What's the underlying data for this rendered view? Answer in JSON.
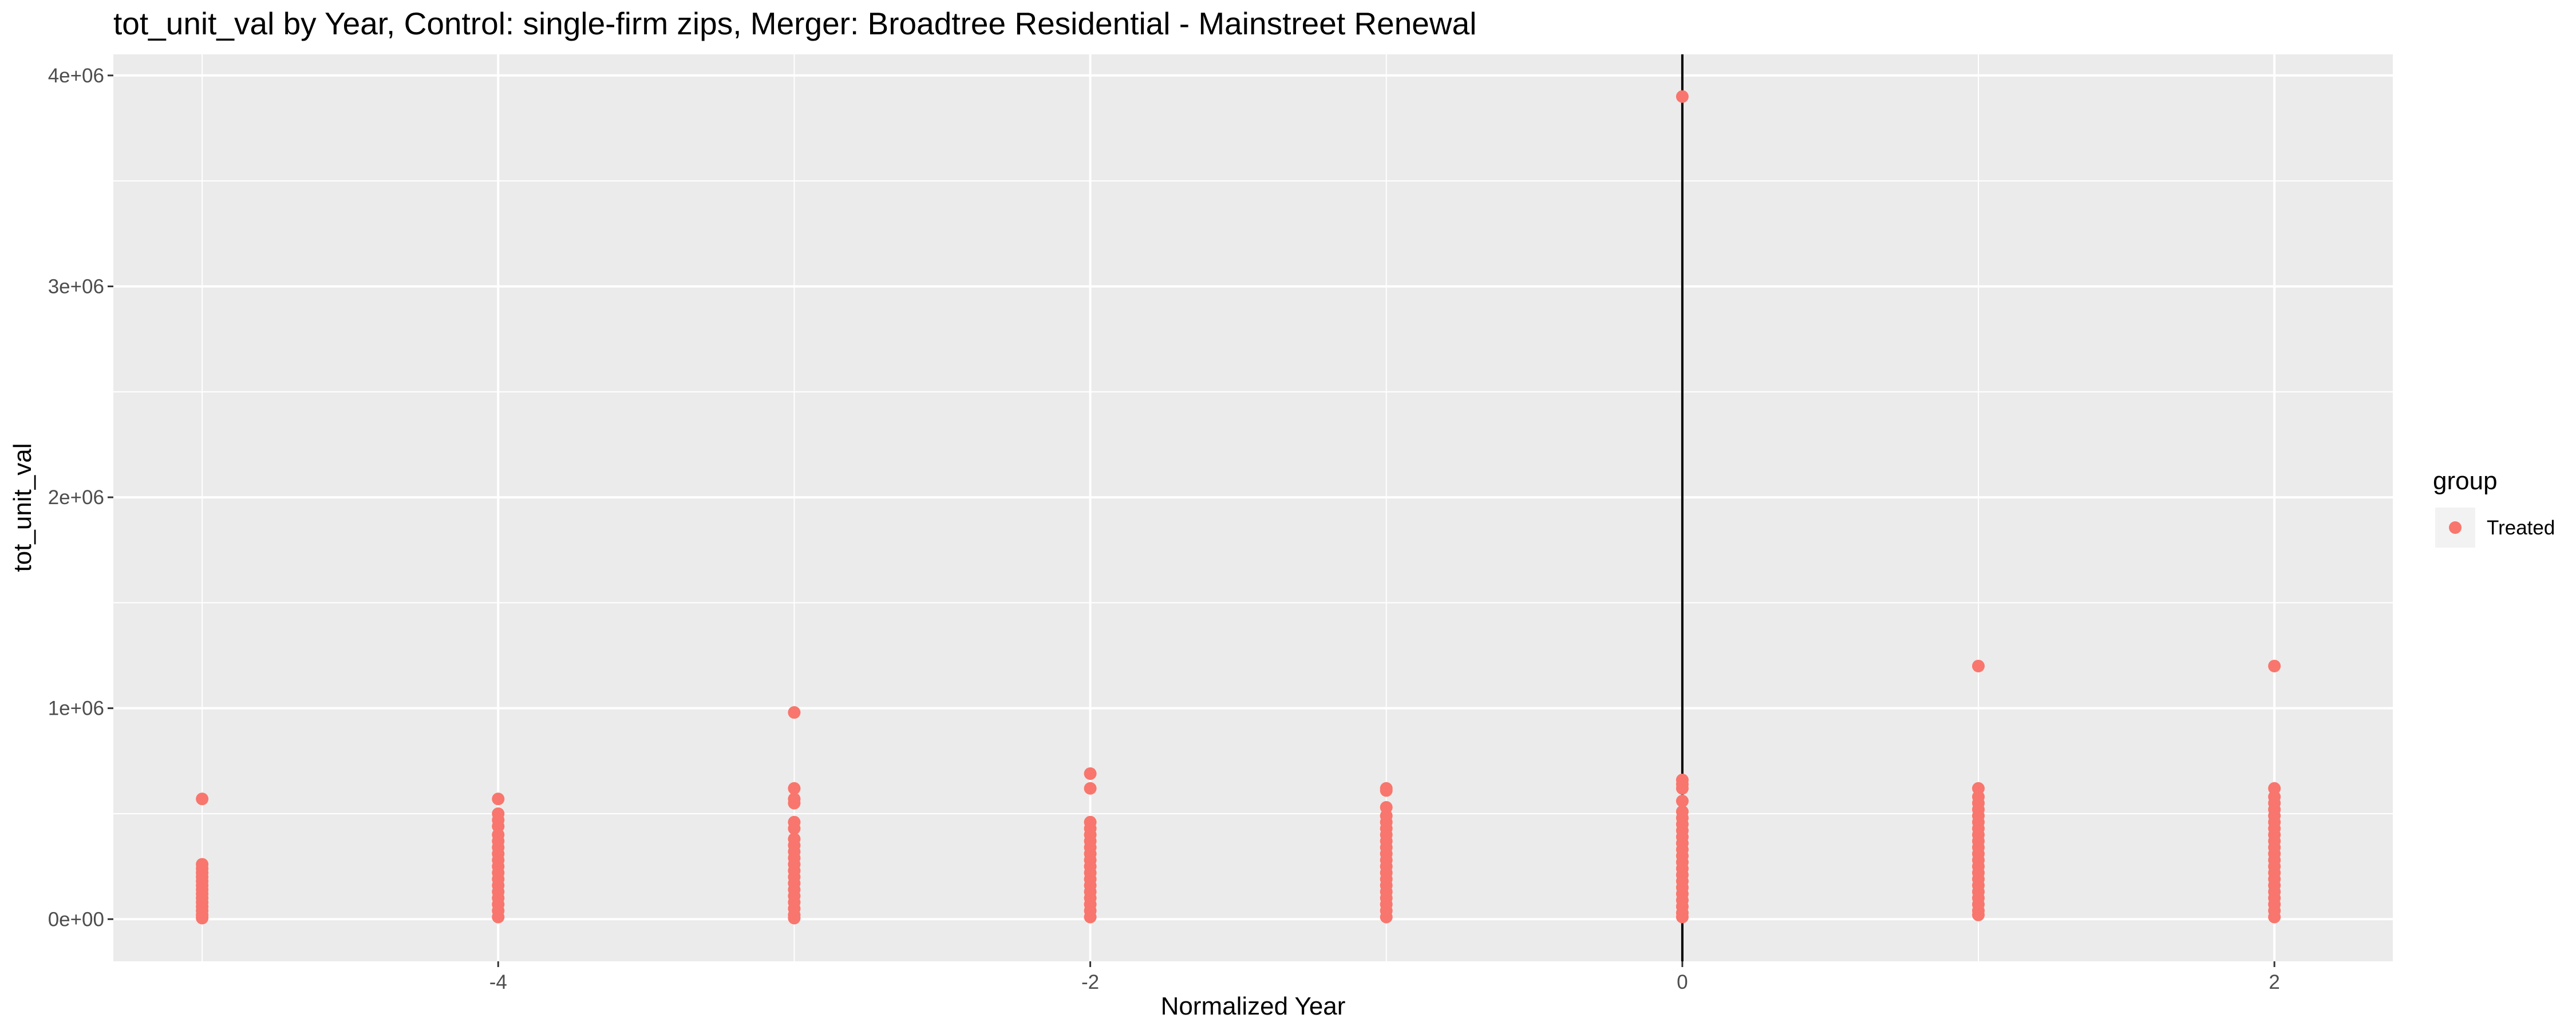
{
  "chart_data": {
    "type": "scatter",
    "title": "tot_unit_val by Year, Control: single-firm zips, Merger: Broadtree Residential - Mainstreet Renewal",
    "xlabel": "Normalized Year",
    "ylabel": "tot_unit_val",
    "xlim": [
      -5.3,
      2.4
    ],
    "ylim": [
      -200000,
      4100000
    ],
    "x_ticks": [
      -4,
      -2,
      0,
      2
    ],
    "x_tick_labels": [
      "-4",
      "-2",
      "0",
      "2"
    ],
    "y_ticks": [
      0,
      1000000,
      2000000,
      3000000,
      4000000
    ],
    "y_tick_labels": [
      "0e+00",
      "1e+06",
      "2e+06",
      "3e+06",
      "4e+06"
    ],
    "vline_x": 0,
    "grid": true,
    "legend": {
      "title": "group",
      "position": "right",
      "entries": [
        "Treated"
      ]
    },
    "colors": {
      "Treated": "#F8766D",
      "panel": "#EBEBEB",
      "grid": "#FFFFFF",
      "vline": "#000000"
    },
    "series": [
      {
        "name": "Treated",
        "points_by_x": [
          {
            "x": -5,
            "values": [
              570000,
              260000,
              240000,
              220000,
              200000,
              180000,
              160000,
              140000,
              120000,
              100000,
              80000,
              60000,
              40000,
              20000,
              5000
            ]
          },
          {
            "x": -4,
            "values": [
              570000,
              500000,
              470000,
              440000,
              400000,
              370000,
              340000,
              310000,
              280000,
              250000,
              220000,
              190000,
              160000,
              130000,
              100000,
              70000,
              40000,
              10000
            ]
          },
          {
            "x": -3,
            "values": [
              980000,
              620000,
              570000,
              550000,
              460000,
              430000,
              380000,
              350000,
              320000,
              290000,
              260000,
              230000,
              200000,
              170000,
              140000,
              110000,
              80000,
              50000,
              20000,
              5000
            ]
          },
          {
            "x": -2,
            "values": [
              690000,
              620000,
              460000,
              430000,
              400000,
              370000,
              340000,
              310000,
              280000,
              250000,
              220000,
              190000,
              160000,
              130000,
              100000,
              70000,
              40000,
              10000
            ]
          },
          {
            "x": -1,
            "values": [
              620000,
              610000,
              530000,
              490000,
              460000,
              430000,
              400000,
              370000,
              340000,
              310000,
              280000,
              250000,
              220000,
              190000,
              160000,
              130000,
              100000,
              70000,
              40000,
              10000
            ]
          },
          {
            "x": 0,
            "values": [
              3900000,
              660000,
              640000,
              620000,
              560000,
              510000,
              480000,
              450000,
              420000,
              390000,
              360000,
              330000,
              300000,
              270000,
              240000,
              210000,
              180000,
              150000,
              120000,
              90000,
              60000,
              30000,
              10000
            ]
          },
          {
            "x": 1,
            "values": [
              1200000,
              620000,
              580000,
              550000,
              520000,
              490000,
              460000,
              430000,
              400000,
              370000,
              340000,
              310000,
              280000,
              250000,
              220000,
              190000,
              160000,
              130000,
              100000,
              70000,
              40000,
              20000
            ]
          },
          {
            "x": 2,
            "values": [
              1200000,
              620000,
              580000,
              550000,
              520000,
              490000,
              460000,
              430000,
              400000,
              370000,
              340000,
              310000,
              280000,
              250000,
              220000,
              190000,
              160000,
              130000,
              100000,
              70000,
              40000,
              10000
            ]
          }
        ]
      }
    ]
  }
}
